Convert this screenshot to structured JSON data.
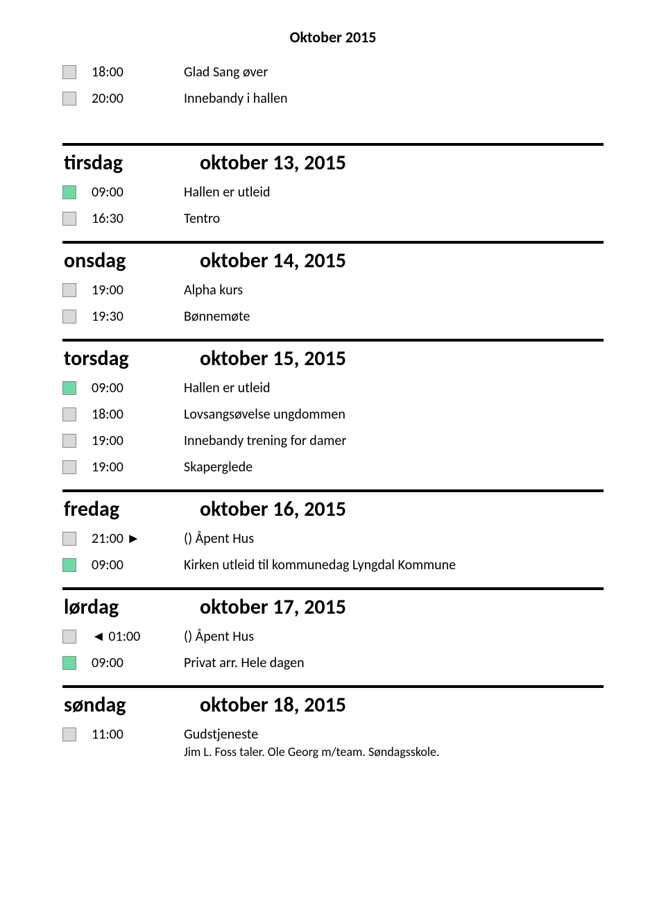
{
  "pageTitle": "Oktober 2015",
  "colors": {
    "gray": "#d9d9d9",
    "green": "#6fd9a3"
  },
  "topItems": [
    {
      "color": "gray",
      "time": "18:00",
      "desc": "Glad Sang øver"
    },
    {
      "color": "gray",
      "time": "20:00",
      "desc": "Innebandy i hallen"
    }
  ],
  "days": [
    {
      "name": "tirsdag",
      "date": "oktober 13, 2015",
      "items": [
        {
          "color": "green",
          "time": "09:00",
          "desc": "Hallen er utleid"
        },
        {
          "color": "gray",
          "time": "16:30",
          "desc": "Tentro"
        }
      ]
    },
    {
      "name": "onsdag",
      "date": "oktober 14, 2015",
      "items": [
        {
          "color": "gray",
          "time": "19:00",
          "desc": "Alpha kurs"
        },
        {
          "color": "gray",
          "time": "19:30",
          "desc": "Bønnemøte"
        }
      ]
    },
    {
      "name": "torsdag",
      "date": "oktober 15, 2015",
      "items": [
        {
          "color": "green",
          "time": "09:00",
          "desc": "Hallen er utleid"
        },
        {
          "color": "gray",
          "time": "18:00",
          "desc": "Lovsangsøvelse ungdommen"
        },
        {
          "color": "gray",
          "time": "19:00",
          "desc": "Innebandy trening for damer"
        },
        {
          "color": "gray",
          "time": "19:00",
          "desc": "Skaperglede"
        }
      ]
    },
    {
      "name": "fredag",
      "date": "oktober 16, 2015",
      "items": [
        {
          "color": "gray",
          "time": "21:00 ►",
          "desc": "() Åpent Hus"
        },
        {
          "color": "green",
          "time": "09:00",
          "desc": "Kirken utleid til kommunedag Lyngdal Kommune"
        }
      ]
    },
    {
      "name": "lørdag",
      "date": "oktober 17, 2015",
      "items": [
        {
          "color": "gray",
          "time": "◄ 01:00",
          "desc": "() Åpent Hus"
        },
        {
          "color": "green",
          "time": "09:00",
          "desc": "Privat arr. Hele dagen"
        }
      ]
    },
    {
      "name": "søndag",
      "date": "oktober 18, 2015",
      "items": [
        {
          "color": "gray",
          "time": "11:00",
          "desc": "Gudstjeneste",
          "sub": "Jim L. Foss taler. Ole Georg m/team. Søndagsskole."
        }
      ]
    }
  ]
}
